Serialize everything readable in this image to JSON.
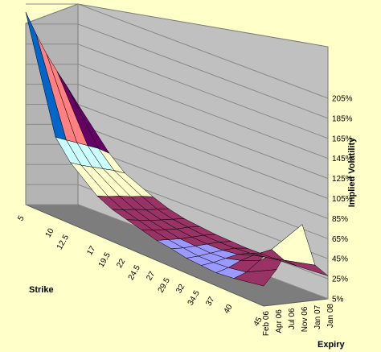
{
  "chart_data": {
    "type": "surface",
    "title": "",
    "xlabel": "Strike",
    "ylabel": "Expiry",
    "zlabel": "Implied Volatility",
    "strikes": [
      5,
      10,
      12.5,
      17,
      19.5,
      22,
      24.5,
      27,
      29.5,
      32,
      34.5,
      37,
      40,
      45
    ],
    "strike_labels": [
      "5",
      "10",
      "12.5",
      "17",
      "19.5",
      "22",
      "24.5",
      "27",
      "29.5",
      "32",
      "34.5",
      "37",
      "40",
      "45"
    ],
    "expiries": [
      "Feb 06",
      "Apr 06",
      "Jul 06",
      "Nov 06",
      "Jan 07",
      "Jan 08"
    ],
    "zlim": [
      0.05,
      2.05
    ],
    "z_tick_labels": [
      "5%",
      "25%",
      "45%",
      "65%",
      "85%",
      "105%",
      "125%",
      "145%",
      "165%",
      "185%",
      "205%"
    ],
    "color_band_percent": 20,
    "band_colors": [
      "#9999ff",
      "#993366",
      "#ffffcc",
      "#ccffff",
      "#660066",
      "#ff8080",
      "#0066cc",
      "#ccccff"
    ],
    "values": [
      [
        1.97,
        0.85,
        0.66,
        0.44,
        0.37,
        0.33,
        0.29,
        0.25,
        0.23,
        0.2,
        0.19,
        0.18,
        0.2,
        0.25
      ],
      [
        1.75,
        0.82,
        0.63,
        0.43,
        0.36,
        0.32,
        0.28,
        0.25,
        0.23,
        0.21,
        0.21,
        0.22,
        0.25,
        0.4
      ],
      [
        1.55,
        0.79,
        0.61,
        0.43,
        0.36,
        0.31,
        0.28,
        0.25,
        0.24,
        0.23,
        0.24,
        0.28,
        0.35,
        0.62
      ],
      [
        1.38,
        0.76,
        0.59,
        0.42,
        0.35,
        0.31,
        0.28,
        0.26,
        0.25,
        0.25,
        0.27,
        0.32,
        0.45,
        0.82
      ],
      [
        1.22,
        0.73,
        0.57,
        0.42,
        0.35,
        0.31,
        0.29,
        0.27,
        0.26,
        0.26,
        0.27,
        0.29,
        0.33,
        0.4
      ],
      [
        1.05,
        0.68,
        0.54,
        0.41,
        0.35,
        0.31,
        0.29,
        0.27,
        0.26,
        0.25,
        0.25,
        0.25,
        0.26,
        0.28
      ]
    ]
  }
}
